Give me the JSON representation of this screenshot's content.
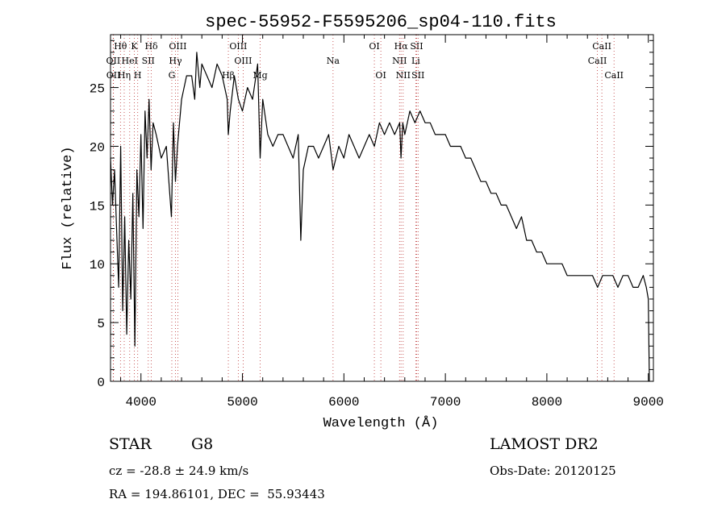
{
  "chart_data": {
    "type": "line",
    "title": "spec-55952-F5595206_sp04-110.fits",
    "xlabel": "Wavelength (Å)",
    "ylabel": "Flux (relative)",
    "xlim": [
      3700,
      9050
    ],
    "ylim": [
      0,
      29.5
    ],
    "xticks": [
      4000,
      5000,
      6000,
      7000,
      8000,
      9000
    ],
    "yticks": [
      0,
      5,
      10,
      15,
      20,
      25
    ],
    "grid": false,
    "series": [
      {
        "x": [
          3700,
          3720,
          3740,
          3760,
          3780,
          3800,
          3820,
          3840,
          3860,
          3880,
          3900,
          3920,
          3940,
          3960,
          3980,
          4000,
          4020,
          4040,
          4060,
          4080,
          4100,
          4120,
          4150,
          4200,
          4250,
          4300,
          4320,
          4340,
          4360,
          4400,
          4450,
          4500,
          4530,
          4550,
          4580,
          4600,
          4650,
          4700,
          4750,
          4800,
          4850,
          4861,
          4880,
          4920,
          4960,
          5000,
          5050,
          5100,
          5150,
          5175,
          5200,
          5250,
          5300,
          5350,
          5400,
          5450,
          5500,
          5550,
          5575,
          5600,
          5650,
          5700,
          5750,
          5800,
          5850,
          5893,
          5950,
          6000,
          6050,
          6100,
          6150,
          6200,
          6250,
          6300,
          6350,
          6400,
          6450,
          6500,
          6550,
          6563,
          6580,
          6600,
          6650,
          6700,
          6750,
          6800,
          6850,
          6900,
          6950,
          7000,
          7050,
          7100,
          7150,
          7200,
          7250,
          7300,
          7350,
          7400,
          7450,
          7500,
          7550,
          7600,
          7650,
          7700,
          7750,
          7800,
          7850,
          7900,
          7950,
          8000,
          8050,
          8100,
          8150,
          8200,
          8250,
          8300,
          8350,
          8400,
          8450,
          8500,
          8550,
          8600,
          8650,
          8700,
          8750,
          8800,
          8850,
          8900,
          8950,
          8980,
          9000,
          9010
        ],
        "values": [
          19,
          15,
          18,
          13,
          8,
          20,
          6,
          14,
          4,
          12,
          7,
          16,
          3,
          18,
          14,
          21,
          13,
          23,
          19,
          24,
          18,
          22,
          21,
          19,
          20,
          14,
          22,
          17,
          20,
          24,
          26,
          26,
          24,
          28,
          25,
          27,
          26,
          25,
          27,
          26,
          24,
          21,
          23,
          26,
          24,
          23,
          25,
          24,
          27,
          19,
          24,
          21,
          20,
          21,
          21,
          20,
          19,
          21,
          12,
          18,
          20,
          20,
          19,
          20,
          21,
          18,
          20,
          19,
          21,
          20,
          19,
          20,
          21,
          20,
          22,
          21,
          22,
          21,
          22,
          19,
          22,
          21,
          23,
          22,
          23,
          22,
          22,
          21,
          21,
          21,
          20,
          20,
          20,
          19,
          19,
          18,
          17,
          17,
          16,
          16,
          15,
          15,
          14,
          13,
          14,
          12,
          12,
          11,
          11,
          10,
          10,
          10,
          10,
          9,
          9,
          9,
          9,
          9,
          9,
          8,
          9,
          9,
          9,
          8,
          9,
          9,
          8,
          8,
          9,
          8,
          7,
          0
        ]
      }
    ],
    "line_markers": [
      {
        "label": "Hθ",
        "x": 3798,
        "row": 0
      },
      {
        "label": "K",
        "x": 3934,
        "row": 0
      },
      {
        "label": "Hδ",
        "x": 4102,
        "row": 0
      },
      {
        "label": "OIII",
        "x": 4363,
        "row": 0
      },
      {
        "label": "OIII",
        "x": 4959,
        "row": 0
      },
      {
        "label": "OI",
        "x": 6300,
        "row": 0
      },
      {
        "label": "Hα",
        "x": 6563,
        "row": 0
      },
      {
        "label": "SII",
        "x": 6717,
        "row": 0
      },
      {
        "label": "CaII",
        "x": 8542,
        "row": 0
      },
      {
        "label": "OII",
        "x": 3727,
        "row": 1
      },
      {
        "label": "HeI",
        "x": 3889,
        "row": 1
      },
      {
        "label": "SII",
        "x": 4072,
        "row": 1
      },
      {
        "label": "Hγ",
        "x": 4340,
        "row": 1
      },
      {
        "label": "OIII",
        "x": 5007,
        "row": 1
      },
      {
        "label": "Na",
        "x": 5893,
        "row": 1
      },
      {
        "label": "NII",
        "x": 6548,
        "row": 1
      },
      {
        "label": "Li",
        "x": 6708,
        "row": 1
      },
      {
        "label": "CaII",
        "x": 8498,
        "row": 1
      },
      {
        "label": "OII",
        "x": 3729,
        "row": 2
      },
      {
        "label": "Hη",
        "x": 3835,
        "row": 2
      },
      {
        "label": "H",
        "x": 3968,
        "row": 2
      },
      {
        "label": "G",
        "x": 4304,
        "row": 2
      },
      {
        "label": "Hβ",
        "x": 4861,
        "row": 2
      },
      {
        "label": "Mg",
        "x": 5175,
        "row": 2
      },
      {
        "label": "OI",
        "x": 6364,
        "row": 2
      },
      {
        "label": "NII",
        "x": 6584,
        "row": 2
      },
      {
        "label": "SII",
        "x": 6731,
        "row": 2
      },
      {
        "label": "CaII",
        "x": 8662,
        "row": 2
      }
    ]
  },
  "info": {
    "object_class": "STAR",
    "subclass": "G8",
    "survey": "LAMOST DR2",
    "cz": "cz = -28.8 ± 24.9 km/s",
    "obs_date": "Obs-Date: 20120125",
    "coords": "RA = 194.86101, DEC =  55.93443"
  }
}
